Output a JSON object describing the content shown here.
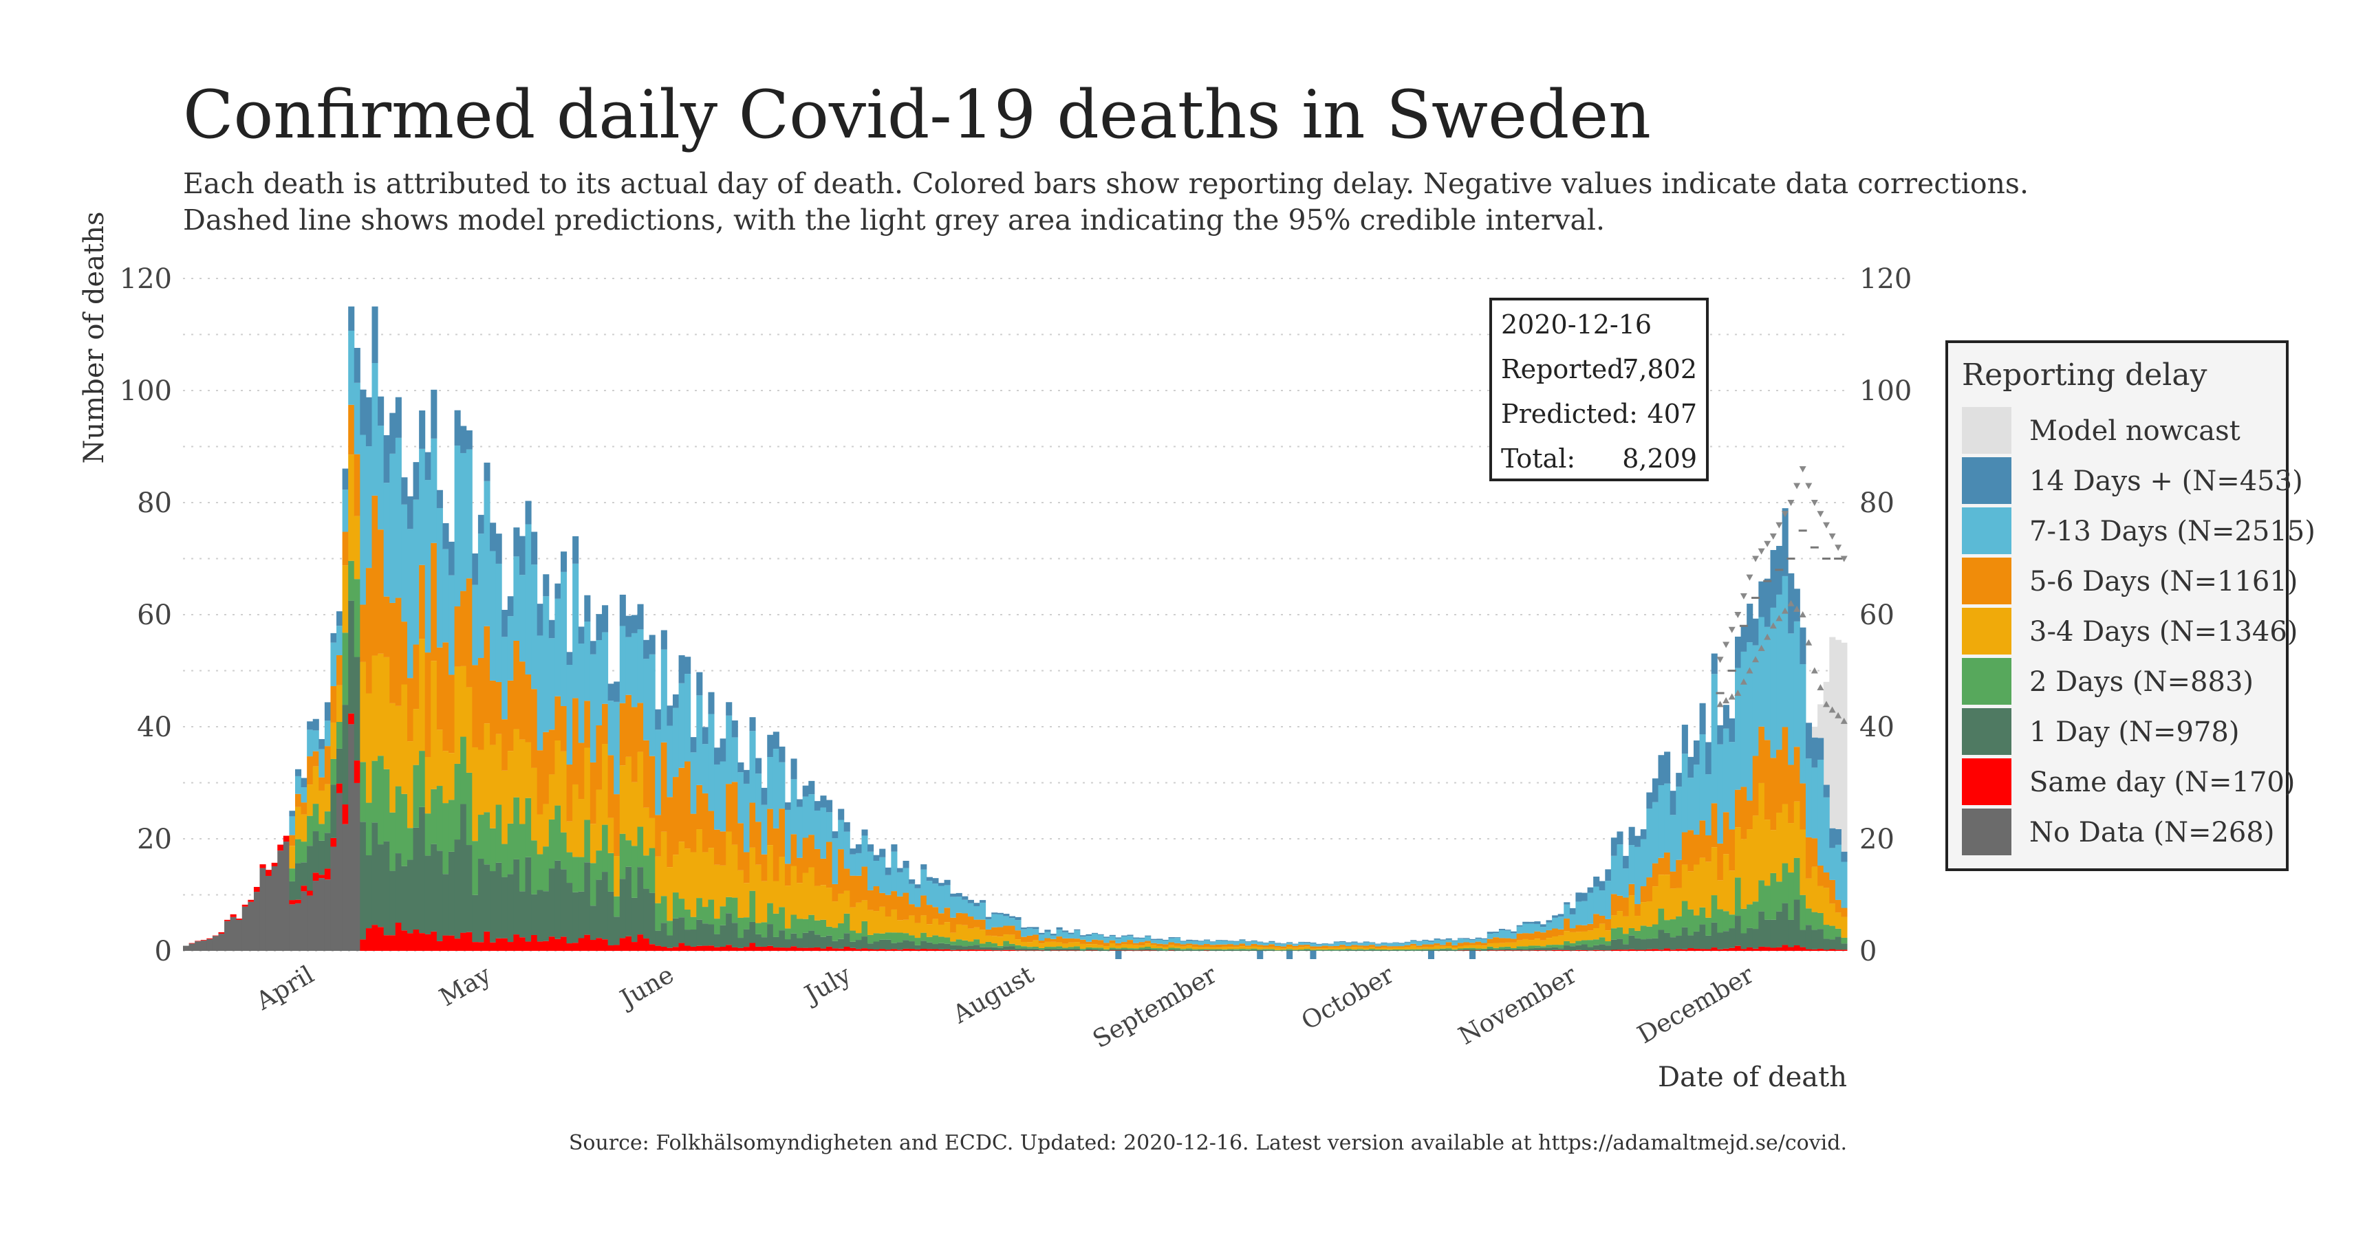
{
  "chart_data": {
    "type": "bar",
    "stacked": true,
    "title": "Confirmed daily Covid-19 deaths in Sweden",
    "subtitle": [
      "Each death is attributed to its actual day of death. Colored bars show reporting delay. Negative values indicate data corrections.",
      "Dashed line shows model predictions, with the light grey area indicating the 95% credible interval."
    ],
    "ylabel": "Number of deaths",
    "xlabel": "Date of death",
    "caption": "Source: Folkhälsomyndigheten and ECDC. Updated: 2020-12-16. Latest version available at https://adamaltmejd.se/covid.",
    "x_range": [
      "2020-03-10",
      "2020-12-16"
    ],
    "ylim": [
      0,
      120
    ],
    "yticks": [
      0,
      20,
      40,
      60,
      80,
      100,
      120
    ],
    "grid": true,
    "months": [
      {
        "label": "April",
        "date": "2020-04-01"
      },
      {
        "label": "May",
        "date": "2020-05-01"
      },
      {
        "label": "June",
        "date": "2020-06-01"
      },
      {
        "label": "July",
        "date": "2020-07-01"
      },
      {
        "label": "August",
        "date": "2020-08-01"
      },
      {
        "label": "September",
        "date": "2020-09-01"
      },
      {
        "label": "October",
        "date": "2020-10-01"
      },
      {
        "label": "November",
        "date": "2020-11-01"
      },
      {
        "label": "December",
        "date": "2020-12-01"
      }
    ],
    "legend": {
      "title": "Reporting delay",
      "position": "right",
      "items": [
        {
          "label": "Model nowcast",
          "color": "#e0e0e0"
        },
        {
          "label": "14 Days + (N=453)",
          "color": "#4a8ab2"
        },
        {
          "label": "7-13 Days (N=2515)",
          "color": "#5bbad6"
        },
        {
          "label": "5-6 Days (N=1161)",
          "color": "#f08c0a"
        },
        {
          "label": "3-4 Days (N=1346)",
          "color": "#f0aa0a"
        },
        {
          "label": "2 Days (N=883)",
          "color": "#57a85c"
        },
        {
          "label": "1 Day (N=978)",
          "color": "#4f7a62"
        },
        {
          "label": "Same day (N=170)",
          "color": "#ff0000"
        },
        {
          "label": "No Data (N=268)",
          "color": "#6b6b6b"
        }
      ]
    },
    "series_order": [
      "no_data",
      "same_day",
      "d1",
      "d2",
      "d3_4",
      "d5_6",
      "d7_13",
      "d14"
    ],
    "colors": {
      "no_data": "#6b6b6b",
      "same_day": "#ff0000",
      "d1": "#4f7a62",
      "d2": "#57a85c",
      "d3_4": "#f0aa0a",
      "d5_6": "#f08c0a",
      "d7_13": "#5bbad6",
      "d14": "#4a8ab2",
      "nowcast": "#e0e0e0",
      "marker": "#888888"
    },
    "summary_box": {
      "date": "2020-12-16",
      "reported_label": "Reported:",
      "reported_value": "7,802",
      "predicted_label": "Predicted:",
      "predicted_value": "407",
      "total_label": "Total:",
      "total_value": "8,209"
    },
    "profile_points": [
      [
        "2020-03-10",
        1
      ],
      [
        "2020-03-15",
        3
      ],
      [
        "2020-03-20",
        8
      ],
      [
        "2020-03-25",
        18
      ],
      [
        "2020-03-30",
        30
      ],
      [
        "2020-04-02",
        45
      ],
      [
        "2020-04-05",
        70
      ],
      [
        "2020-04-08",
        95
      ],
      [
        "2020-04-11",
        100
      ],
      [
        "2020-04-15",
        92
      ],
      [
        "2020-04-20",
        90
      ],
      [
        "2020-04-25",
        82
      ],
      [
        "2020-05-01",
        75
      ],
      [
        "2020-05-10",
        68
      ],
      [
        "2020-05-20",
        58
      ],
      [
        "2020-06-01",
        47
      ],
      [
        "2020-06-10",
        40
      ],
      [
        "2020-06-20",
        32
      ],
      [
        "2020-07-01",
        22
      ],
      [
        "2020-07-10",
        15
      ],
      [
        "2020-07-20",
        9
      ],
      [
        "2020-08-01",
        4
      ],
      [
        "2020-08-15",
        2.5
      ],
      [
        "2020-09-01",
        2
      ],
      [
        "2020-09-15",
        1.5
      ],
      [
        "2020-10-01",
        1.5
      ],
      [
        "2020-10-15",
        2.5
      ],
      [
        "2020-10-25",
        5
      ],
      [
        "2020-11-01",
        9
      ],
      [
        "2020-11-10",
        22
      ],
      [
        "2020-11-20",
        38
      ],
      [
        "2020-11-28",
        52
      ],
      [
        "2020-12-05",
        65
      ],
      [
        "2020-12-08",
        64
      ],
      [
        "2020-12-11",
        40
      ],
      [
        "2020-12-13",
        28
      ],
      [
        "2020-12-16",
        16
      ]
    ],
    "peaks": [
      {
        "date": "2020-04-07",
        "value": 115
      },
      {
        "date": "2020-04-11",
        "value": 115
      },
      {
        "date": "2020-04-14",
        "value": 96
      },
      {
        "date": "2020-04-20",
        "value": 89
      },
      {
        "date": "2020-12-06",
        "value": 79
      }
    ],
    "nowcast_points": [
      [
        "2020-12-01",
        0
      ],
      [
        "2020-12-04",
        5
      ],
      [
        "2020-12-07",
        12
      ],
      [
        "2020-12-09",
        28
      ],
      [
        "2020-12-11",
        40
      ],
      [
        "2020-12-13",
        48
      ],
      [
        "2020-12-14",
        56
      ],
      [
        "2020-12-16",
        55
      ]
    ],
    "prediction_points": [
      [
        "2020-11-25",
        46
      ],
      [
        "2020-11-27",
        50
      ],
      [
        "2020-11-29",
        58
      ],
      [
        "2020-12-01",
        63
      ],
      [
        "2020-12-03",
        66
      ],
      [
        "2020-12-05",
        68
      ],
      [
        "2020-12-07",
        70
      ],
      [
        "2020-12-09",
        75
      ],
      [
        "2020-12-11",
        72
      ],
      [
        "2020-12-13",
        70
      ],
      [
        "2020-12-15",
        70
      ]
    ],
    "ci_upper_points": [
      [
        "2020-11-25",
        52
      ],
      [
        "2020-11-28",
        60
      ],
      [
        "2020-12-01",
        70
      ],
      [
        "2020-12-04",
        74
      ],
      [
        "2020-12-07",
        80
      ],
      [
        "2020-12-09",
        86
      ],
      [
        "2020-12-11",
        80
      ],
      [
        "2020-12-13",
        76
      ],
      [
        "2020-12-16",
        70
      ]
    ],
    "ci_lower_points": [
      [
        "2020-11-25",
        44
      ],
      [
        "2020-11-28",
        46
      ],
      [
        "2020-12-01",
        52
      ],
      [
        "2020-12-04",
        58
      ],
      [
        "2020-12-07",
        62
      ],
      [
        "2020-12-09",
        60
      ],
      [
        "2020-12-11",
        50
      ],
      [
        "2020-12-13",
        44
      ],
      [
        "2020-12-16",
        41
      ]
    ]
  }
}
